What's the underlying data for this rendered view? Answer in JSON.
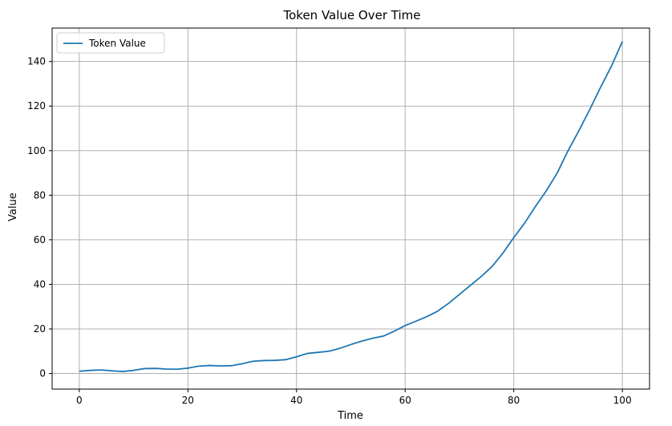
{
  "chart_data": {
    "type": "line",
    "title": "Token Value Over Time",
    "xlabel": "Time",
    "ylabel": "Value",
    "xlim": [
      -5,
      105
    ],
    "ylim": [
      -7,
      155
    ],
    "xticks": [
      0,
      20,
      40,
      60,
      80,
      100
    ],
    "yticks": [
      0,
      20,
      40,
      60,
      80,
      100,
      120,
      140
    ],
    "grid": true,
    "legend": {
      "position": "top-left",
      "entries": [
        "Token Value"
      ]
    },
    "series": [
      {
        "name": "Token Value",
        "color": "#1f77b4",
        "x": [
          0,
          2,
          4,
          6,
          8,
          10,
          12,
          14,
          16,
          18,
          20,
          22,
          24,
          26,
          28,
          30,
          32,
          34,
          36,
          38,
          40,
          42,
          44,
          46,
          48,
          50,
          52,
          54,
          56,
          58,
          60,
          62,
          64,
          66,
          68,
          70,
          72,
          74,
          76,
          78,
          80,
          82,
          84,
          86,
          88,
          90,
          92,
          94,
          96,
          98,
          100
        ],
        "y": [
          1.0,
          1.4,
          1.6,
          1.2,
          0.9,
          1.4,
          2.2,
          2.3,
          2.0,
          1.9,
          2.4,
          3.3,
          3.6,
          3.4,
          3.5,
          4.4,
          5.5,
          5.8,
          5.9,
          6.2,
          7.5,
          9.0,
          9.5,
          10.0,
          11.3,
          13.0,
          14.5,
          15.8,
          16.8,
          19.0,
          21.5,
          23.5,
          25.5,
          28.0,
          31.5,
          35.5,
          39.5,
          43.5,
          48.0,
          54.0,
          61.0,
          67.5,
          75.0,
          82.0,
          90.0,
          100.0,
          109.0,
          118.5,
          128.5,
          138.0,
          149.0
        ]
      }
    ]
  }
}
